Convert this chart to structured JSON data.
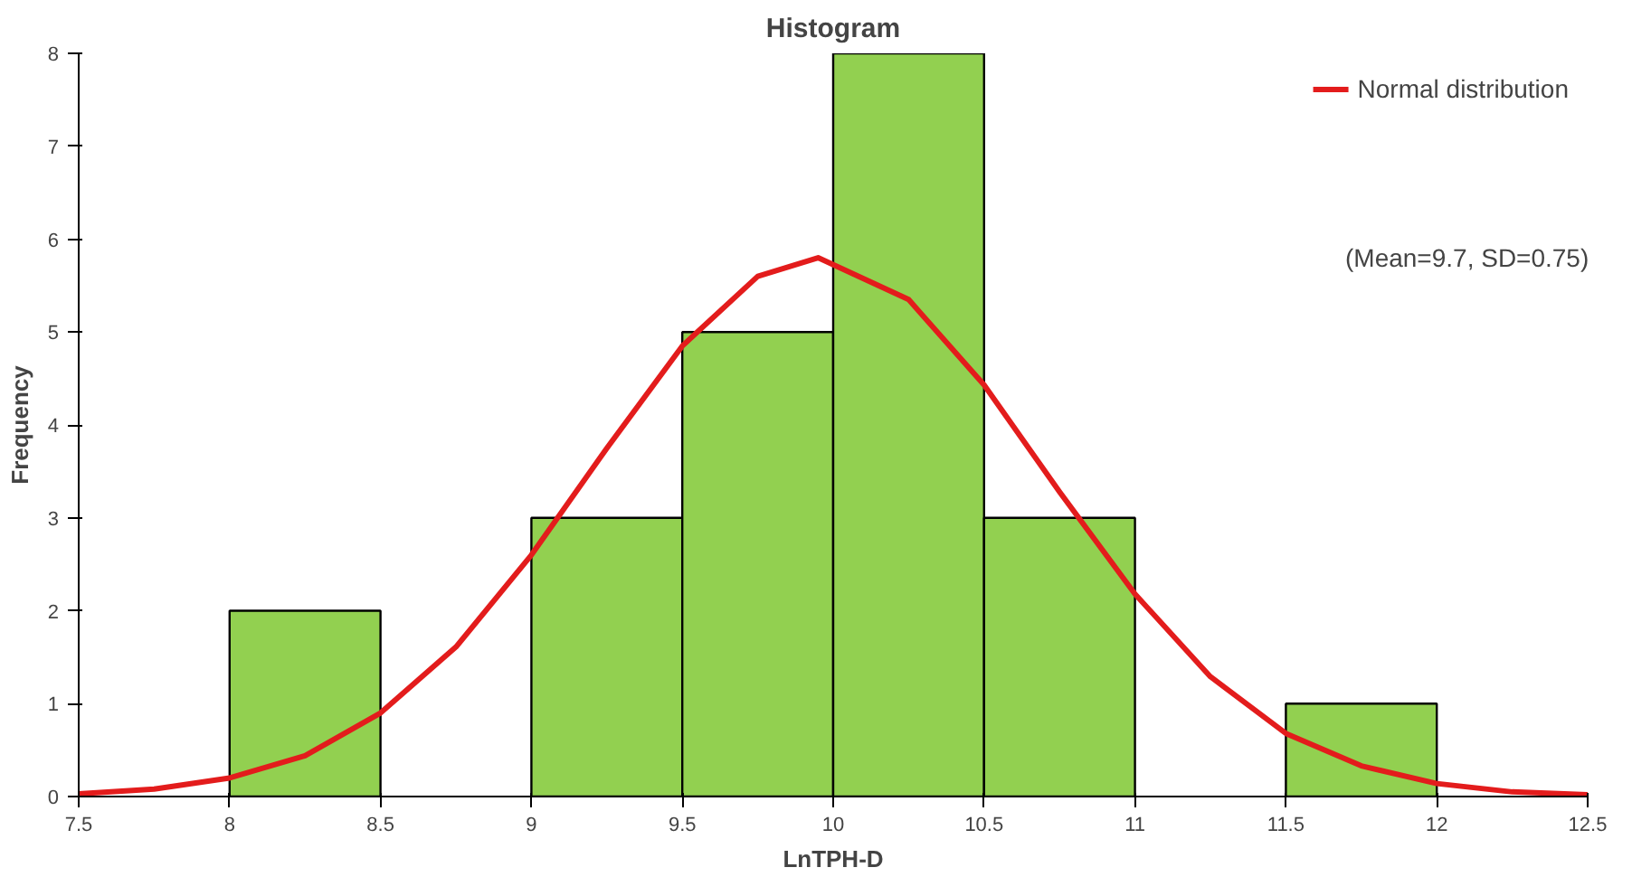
{
  "chart_data": {
    "type": "histogram",
    "title": "Histogram",
    "xlabel": "LnTPH-D",
    "ylabel": "Frequency",
    "bins": [
      7.5,
      8,
      8.5,
      9,
      9.5,
      10,
      10.5,
      11,
      11.5,
      12,
      12.5
    ],
    "values": [
      0,
      2,
      0,
      3,
      5,
      8,
      3,
      0,
      1,
      0
    ],
    "color": "#92d050",
    "series": [
      {
        "type": "line",
        "name": "Normal distribution",
        "color": "#e31c1c",
        "x": [
          7.5,
          7.75,
          8,
          8.25,
          8.5,
          8.75,
          9,
          9.25,
          9.5,
          9.75,
          9.95,
          10.25,
          10.5,
          10.75,
          11,
          11.25,
          11.5,
          11.75,
          12,
          12.25,
          12.5
        ],
        "values": [
          0.03,
          0.08,
          0.2,
          0.44,
          0.9,
          1.61,
          2.6,
          3.75,
          4.85,
          5.6,
          5.8,
          5.35,
          4.43,
          3.28,
          2.18,
          1.29,
          0.68,
          0.33,
          0.14,
          0.05,
          0.02
        ]
      }
    ],
    "annotations": [
      "(Mean=9.7, SD=0.75)"
    ],
    "xlim": [
      7.5,
      12.5
    ],
    "xticks": [
      7.5,
      8,
      8.5,
      9,
      9.5,
      10,
      10.5,
      11,
      11.5,
      12,
      12.5
    ],
    "ylim": [
      0,
      8
    ],
    "yticks": [
      0,
      1,
      2,
      3,
      4,
      5,
      6,
      7,
      8
    ],
    "grid": false,
    "legend": "top right"
  }
}
